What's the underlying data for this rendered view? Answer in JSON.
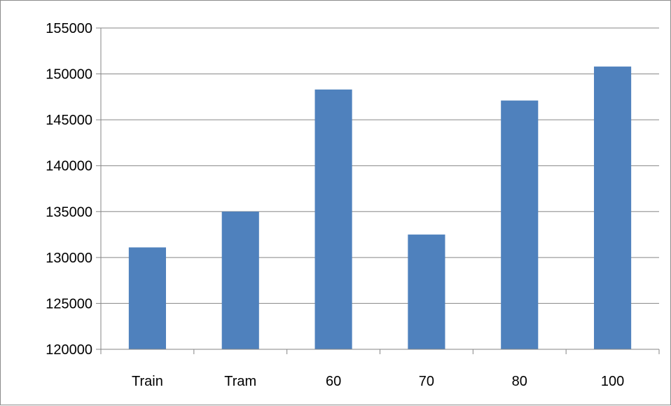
{
  "chart_data": {
    "type": "bar",
    "categories": [
      "Train",
      "Tram",
      "60",
      "70",
      "80",
      "100"
    ],
    "values": [
      131100,
      135000,
      148300,
      132500,
      147100,
      150800
    ],
    "title": "",
    "xlabel": "",
    "ylabel": "",
    "ylim": [
      120000,
      155000
    ],
    "yticks": [
      120000,
      125000,
      130000,
      135000,
      140000,
      145000,
      150000,
      155000
    ],
    "ytick_labels": [
      "120000",
      "125000",
      "130000",
      "135000",
      "140000",
      "145000",
      "150000",
      "155000"
    ],
    "grid": true,
    "legend": "none",
    "bar_color": "#4f81bd",
    "gridline_color": "#868686"
  }
}
